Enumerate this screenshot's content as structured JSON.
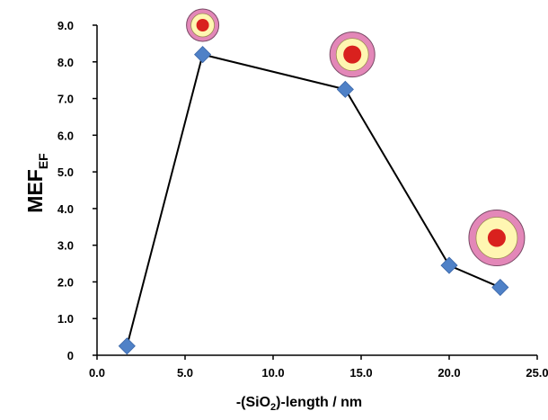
{
  "chart_data": {
    "type": "scatter",
    "xlabel_parts": [
      "-(SiO",
      "2",
      ")-length  / nm"
    ],
    "ylabel_parts": [
      "MEF",
      "EF"
    ],
    "xlim": [
      0,
      25
    ],
    "ylim": [
      0,
      9
    ],
    "xticks": [
      "0.0",
      "5.0",
      "10.0",
      "15.0",
      "20.0",
      "25.0"
    ],
    "yticks": [
      "0",
      "1.0",
      "2.0",
      "3.0",
      "4.0",
      "5.0",
      "6.0",
      "7.0",
      "8.0",
      "9.0"
    ],
    "grid": false,
    "series": [
      {
        "x": [
          1.7,
          6.0,
          14.1,
          20.0,
          22.9
        ],
        "y": [
          0.25,
          8.2,
          7.25,
          2.45,
          1.85
        ],
        "marker": "diamond",
        "marker_color": "#4f81c7",
        "line_color": "#000000"
      }
    ],
    "annotations": [
      {
        "shape": "core-shell-particle",
        "x": 6.0,
        "y": 9.0,
        "size": "small"
      },
      {
        "shape": "core-shell-particle",
        "x": 14.5,
        "y": 8.2,
        "size": "medium"
      },
      {
        "shape": "core-shell-particle",
        "x": 22.7,
        "y": 3.2,
        "size": "large"
      }
    ],
    "colors": {
      "shell_outer": "#e387b8",
      "shell_inner": "#fff6b2",
      "core": "#d9211e"
    }
  }
}
